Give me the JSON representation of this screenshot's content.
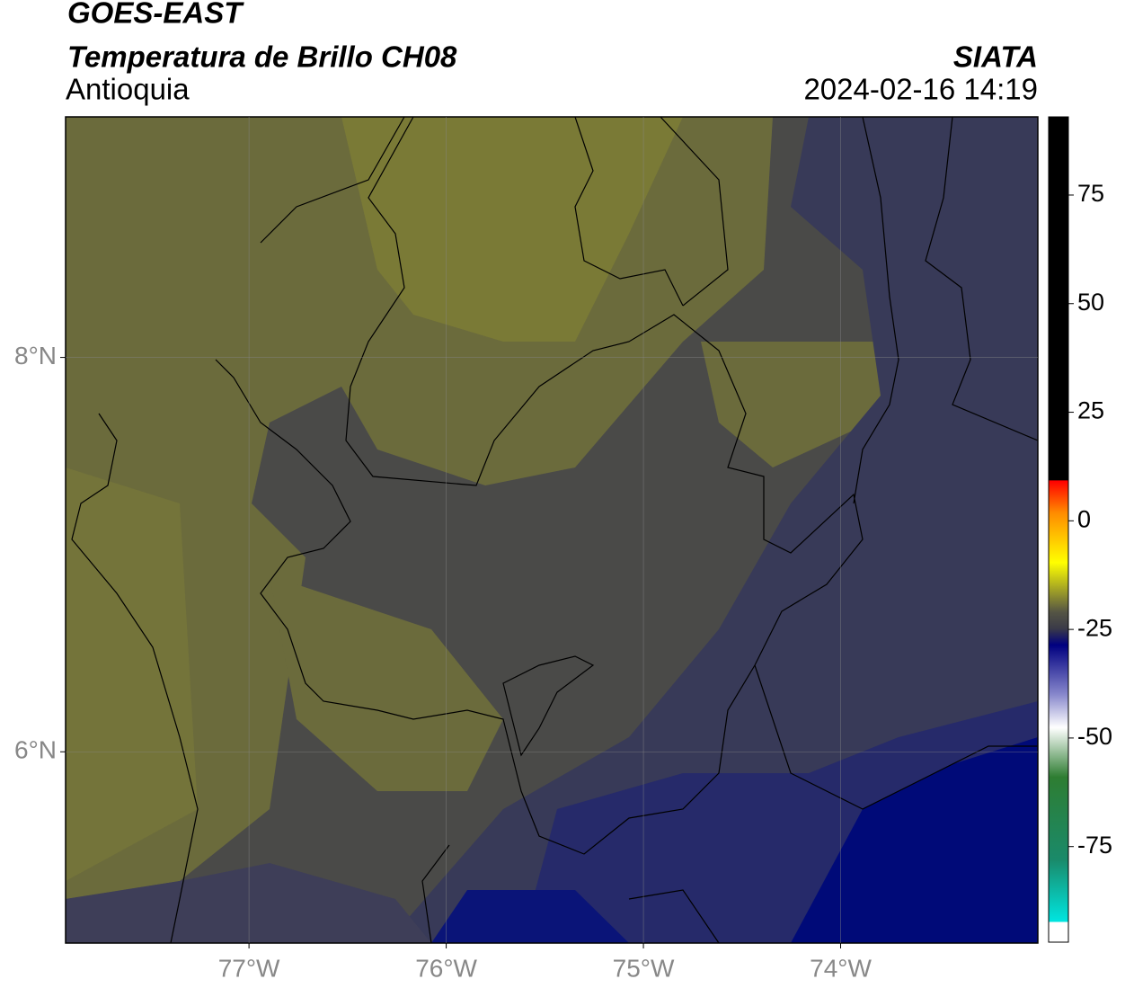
{
  "header": {
    "title": "GOES-EAST",
    "subtitle": "Temperatura de Brillo CH08",
    "region": "Antioquia",
    "brand": "SIATA",
    "datetime": "2024-02-16 14:19"
  },
  "map": {
    "xlim": [
      -77.93,
      -73.0
    ],
    "ylim": [
      5.03,
      9.22
    ],
    "xticks": [
      {
        "value": -77,
        "label": "77°W"
      },
      {
        "value": -76,
        "label": "76°W"
      },
      {
        "value": -75,
        "label": "75°W"
      },
      {
        "value": -74,
        "label": "74°W"
      }
    ],
    "yticks": [
      {
        "value": 8,
        "label": "8°N"
      },
      {
        "value": 6,
        "label": "6°N"
      }
    ]
  },
  "colorbar": {
    "range": [
      -97,
      93
    ],
    "ticks": [
      75,
      50,
      25,
      0,
      -25,
      -50,
      -75
    ]
  }
}
